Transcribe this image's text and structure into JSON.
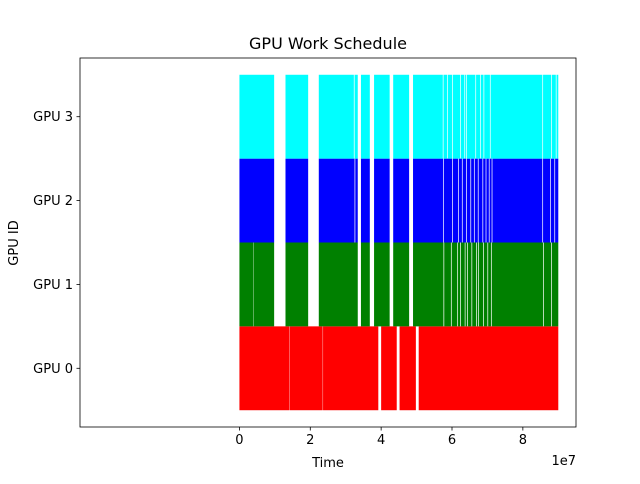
{
  "chart_data": {
    "type": "bar",
    "orientation": "horizontal",
    "title": "GPU Work Schedule",
    "xlabel": "Time",
    "ylabel": "GPU ID",
    "x_offset_text": "1e7",
    "xlim": [
      -45000000,
      95000000
    ],
    "ylim": [
      -0.7,
      3.7
    ],
    "x_ticks": [
      0,
      20000000,
      40000000,
      60000000,
      80000000
    ],
    "x_tick_labels": [
      "0",
      "2",
      "4",
      "6",
      "8"
    ],
    "grid": false,
    "legend": "none",
    "series": [
      {
        "y": 0,
        "label": "GPU 0",
        "color": "#ff0000",
        "intervals": [
          [
            0,
            14000000
          ],
          [
            14100000,
            23500000
          ],
          [
            23600000,
            39200000
          ],
          [
            40000000,
            44400000
          ],
          [
            45200000,
            49800000
          ],
          [
            50600000,
            90000000
          ]
        ]
      },
      {
        "y": 1,
        "label": "GPU 1",
        "color": "#008000",
        "intervals": [
          [
            0,
            4000000
          ],
          [
            4100000,
            9800000
          ],
          [
            13000000,
            19400000
          ],
          [
            22400000,
            33400000
          ],
          [
            34300000,
            36800000
          ],
          [
            38000000,
            42400000
          ],
          [
            43400000,
            47900000
          ],
          [
            49000000,
            57600000
          ],
          [
            57800000,
            59700000
          ],
          [
            59900000,
            61500000
          ],
          [
            61700000,
            62300000
          ],
          [
            62500000,
            63600000
          ],
          [
            63800000,
            64300000
          ],
          [
            64500000,
            65500000
          ],
          [
            65700000,
            66800000
          ],
          [
            67000000,
            67400000
          ],
          [
            67600000,
            68800000
          ],
          [
            69000000,
            70000000
          ],
          [
            70200000,
            71000000
          ],
          [
            71200000,
            85700000
          ],
          [
            85900000,
            88000000
          ],
          [
            88200000,
            90000000
          ]
        ]
      },
      {
        "y": 2,
        "label": "GPU 2",
        "color": "#0000ff",
        "intervals": [
          [
            0,
            9800000
          ],
          [
            13000000,
            19400000
          ],
          [
            22400000,
            32500000
          ],
          [
            32700000,
            33400000
          ],
          [
            34300000,
            36800000
          ],
          [
            38000000,
            42400000
          ],
          [
            43400000,
            47900000
          ],
          [
            49000000,
            57500000
          ],
          [
            57700000,
            60000000
          ],
          [
            60200000,
            61700000
          ],
          [
            61900000,
            62800000
          ],
          [
            63000000,
            64000000
          ],
          [
            64200000,
            65200000
          ],
          [
            65400000,
            66200000
          ],
          [
            66400000,
            67300000
          ],
          [
            67500000,
            68600000
          ],
          [
            68800000,
            69500000
          ],
          [
            69700000,
            70400000
          ],
          [
            70600000,
            71200000
          ],
          [
            71400000,
            85500000
          ],
          [
            85700000,
            87700000
          ],
          [
            87900000,
            88900000
          ],
          [
            89100000,
            90000000
          ]
        ]
      },
      {
        "y": 3,
        "label": "GPU 3",
        "color": "#00ffff",
        "intervals": [
          [
            0,
            9800000
          ],
          [
            13000000,
            19400000
          ],
          [
            22400000,
            32300000
          ],
          [
            32500000,
            33400000
          ],
          [
            34300000,
            36800000
          ],
          [
            38000000,
            42400000
          ],
          [
            43400000,
            47900000
          ],
          [
            49000000,
            57400000
          ],
          [
            57600000,
            58600000
          ],
          [
            58800000,
            60000000
          ],
          [
            60200000,
            62300000
          ],
          [
            62500000,
            63500000
          ],
          [
            63700000,
            64000000
          ],
          [
            64200000,
            66600000
          ],
          [
            66800000,
            67900000
          ],
          [
            68100000,
            68900000
          ],
          [
            69100000,
            70700000
          ],
          [
            70900000,
            85500000
          ],
          [
            85700000,
            88000000
          ],
          [
            88200000,
            89300000
          ],
          [
            89500000,
            90000000
          ]
        ]
      }
    ]
  }
}
